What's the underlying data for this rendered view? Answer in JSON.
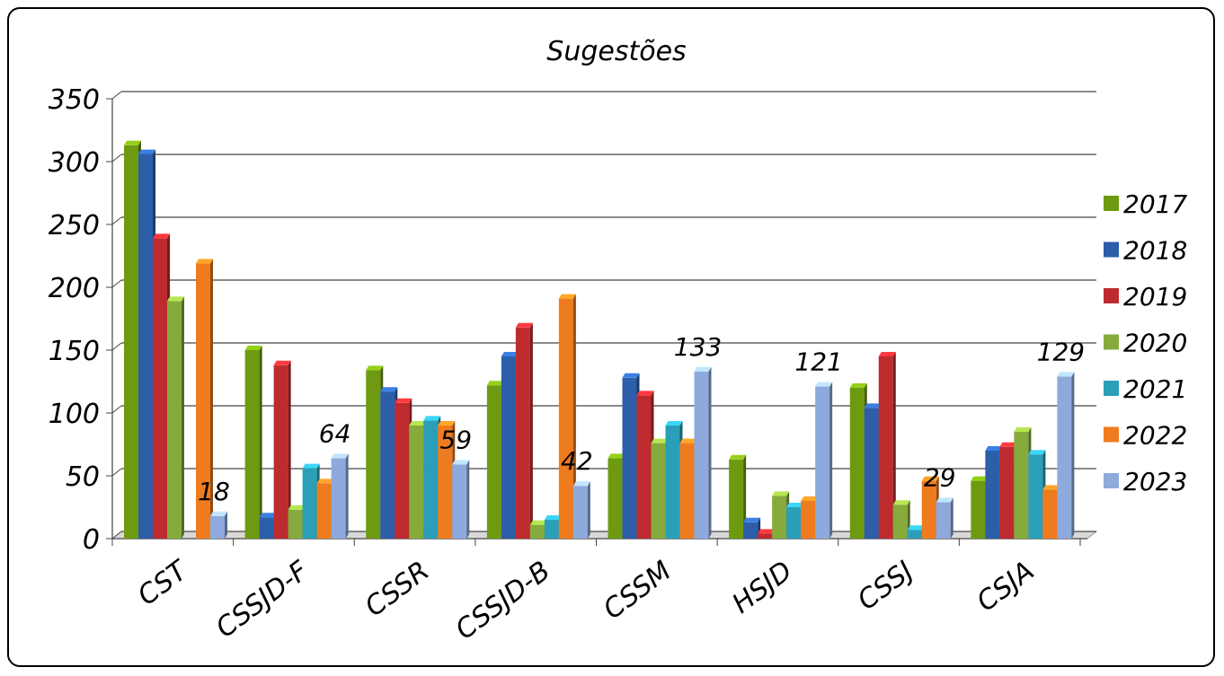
{
  "chart_data": {
    "type": "bar",
    "title": "Sugestões",
    "categories": [
      "CST",
      "CSSJD-F",
      "CSSR",
      "CSSJD-B",
      "CSSM",
      "HSJD",
      "CSSJ",
      "CSJA"
    ],
    "ylim": [
      0,
      350
    ],
    "yticks": [
      0,
      50,
      100,
      150,
      200,
      250,
      300,
      350
    ],
    "grid": true,
    "legend_position": "right",
    "series": [
      {
        "name": "2017",
        "color": "#6e9a11",
        "values": [
          313,
          150,
          134,
          122,
          64,
          63,
          120,
          46
        ]
      },
      {
        "name": "2018",
        "color": "#2c5eaa",
        "values": [
          306,
          17,
          117,
          145,
          128,
          13,
          104,
          70
        ]
      },
      {
        "name": "2019",
        "color": "#be2b2f",
        "values": [
          239,
          138,
          108,
          168,
          114,
          4,
          145,
          73
        ]
      },
      {
        "name": "2020",
        "color": "#86ab3c",
        "values": [
          189,
          23,
          90,
          11,
          76,
          34,
          27,
          85
        ]
      },
      {
        "name": "2021",
        "color": "#2a9fb7",
        "values": [
          0,
          56,
          94,
          15,
          90,
          25,
          7,
          67
        ]
      },
      {
        "name": "2022",
        "color": "#ef7b1f",
        "values": [
          219,
          44,
          90,
          191,
          76,
          30,
          46,
          39
        ]
      },
      {
        "name": "2023",
        "color": "#8eaadc",
        "values": [
          18,
          64,
          59,
          42,
          133,
          121,
          29,
          129
        ]
      }
    ],
    "data_labels": [
      {
        "category": "CST",
        "series": "2023",
        "text": "18"
      },
      {
        "category": "CSSJD-F",
        "series": "2023",
        "text": "64"
      },
      {
        "category": "CSSR",
        "series": "2023",
        "text": "59"
      },
      {
        "category": "CSSJD-B",
        "series": "2023",
        "text": "42"
      },
      {
        "category": "CSSM",
        "series": "2023",
        "text": "133"
      },
      {
        "category": "HSJD",
        "series": "2023",
        "text": "121"
      },
      {
        "category": "CSSJ",
        "series": "2023",
        "text": "29"
      },
      {
        "category": "CSJA",
        "series": "2023",
        "text": "129"
      }
    ]
  }
}
